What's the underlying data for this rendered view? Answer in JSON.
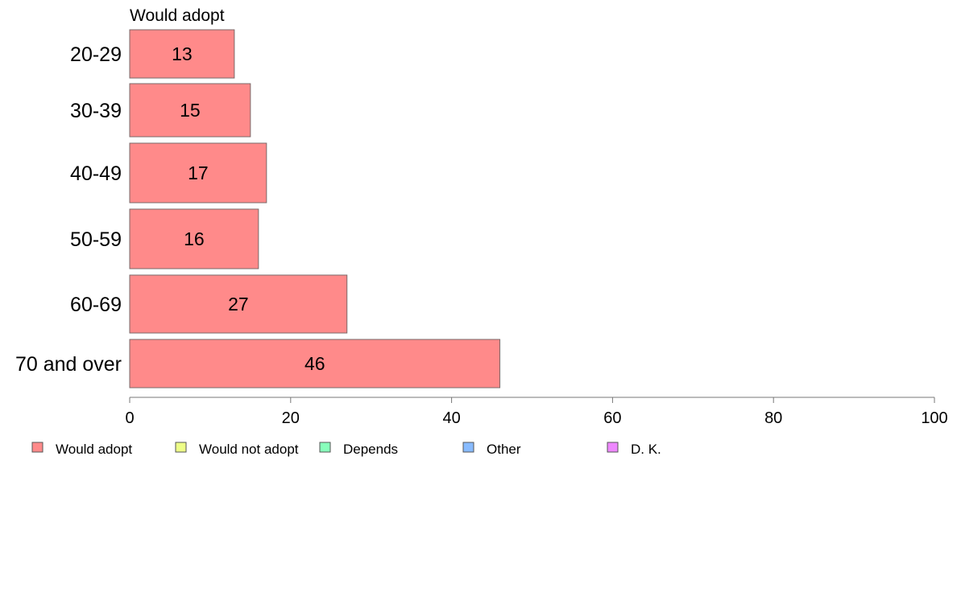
{
  "chart_data": {
    "type": "bar",
    "orientation": "horizontal",
    "title": "Would adopt",
    "categories": [
      "20-29",
      "30-39",
      "40-49",
      "50-59",
      "60-69",
      "70 and over"
    ],
    "series": [
      {
        "name": "Would adopt",
        "values": [
          13,
          15,
          17,
          16,
          27,
          46
        ],
        "color": "#ff8a8a"
      }
    ],
    "x_ticks": [
      "0",
      "20",
      "40",
      "60",
      "80",
      "100"
    ],
    "xlim": [
      0,
      100
    ],
    "grid": false,
    "legend_position": "bottom",
    "legend": [
      {
        "label": "Would adopt",
        "color": "#ff8a8a"
      },
      {
        "label": "Would not adopt",
        "color": "#eeff88"
      },
      {
        "label": "Depends",
        "color": "#88ffbb"
      },
      {
        "label": "Other",
        "color": "#88bbff"
      },
      {
        "label": "D. K.",
        "color": "#ee88ff"
      }
    ]
  }
}
